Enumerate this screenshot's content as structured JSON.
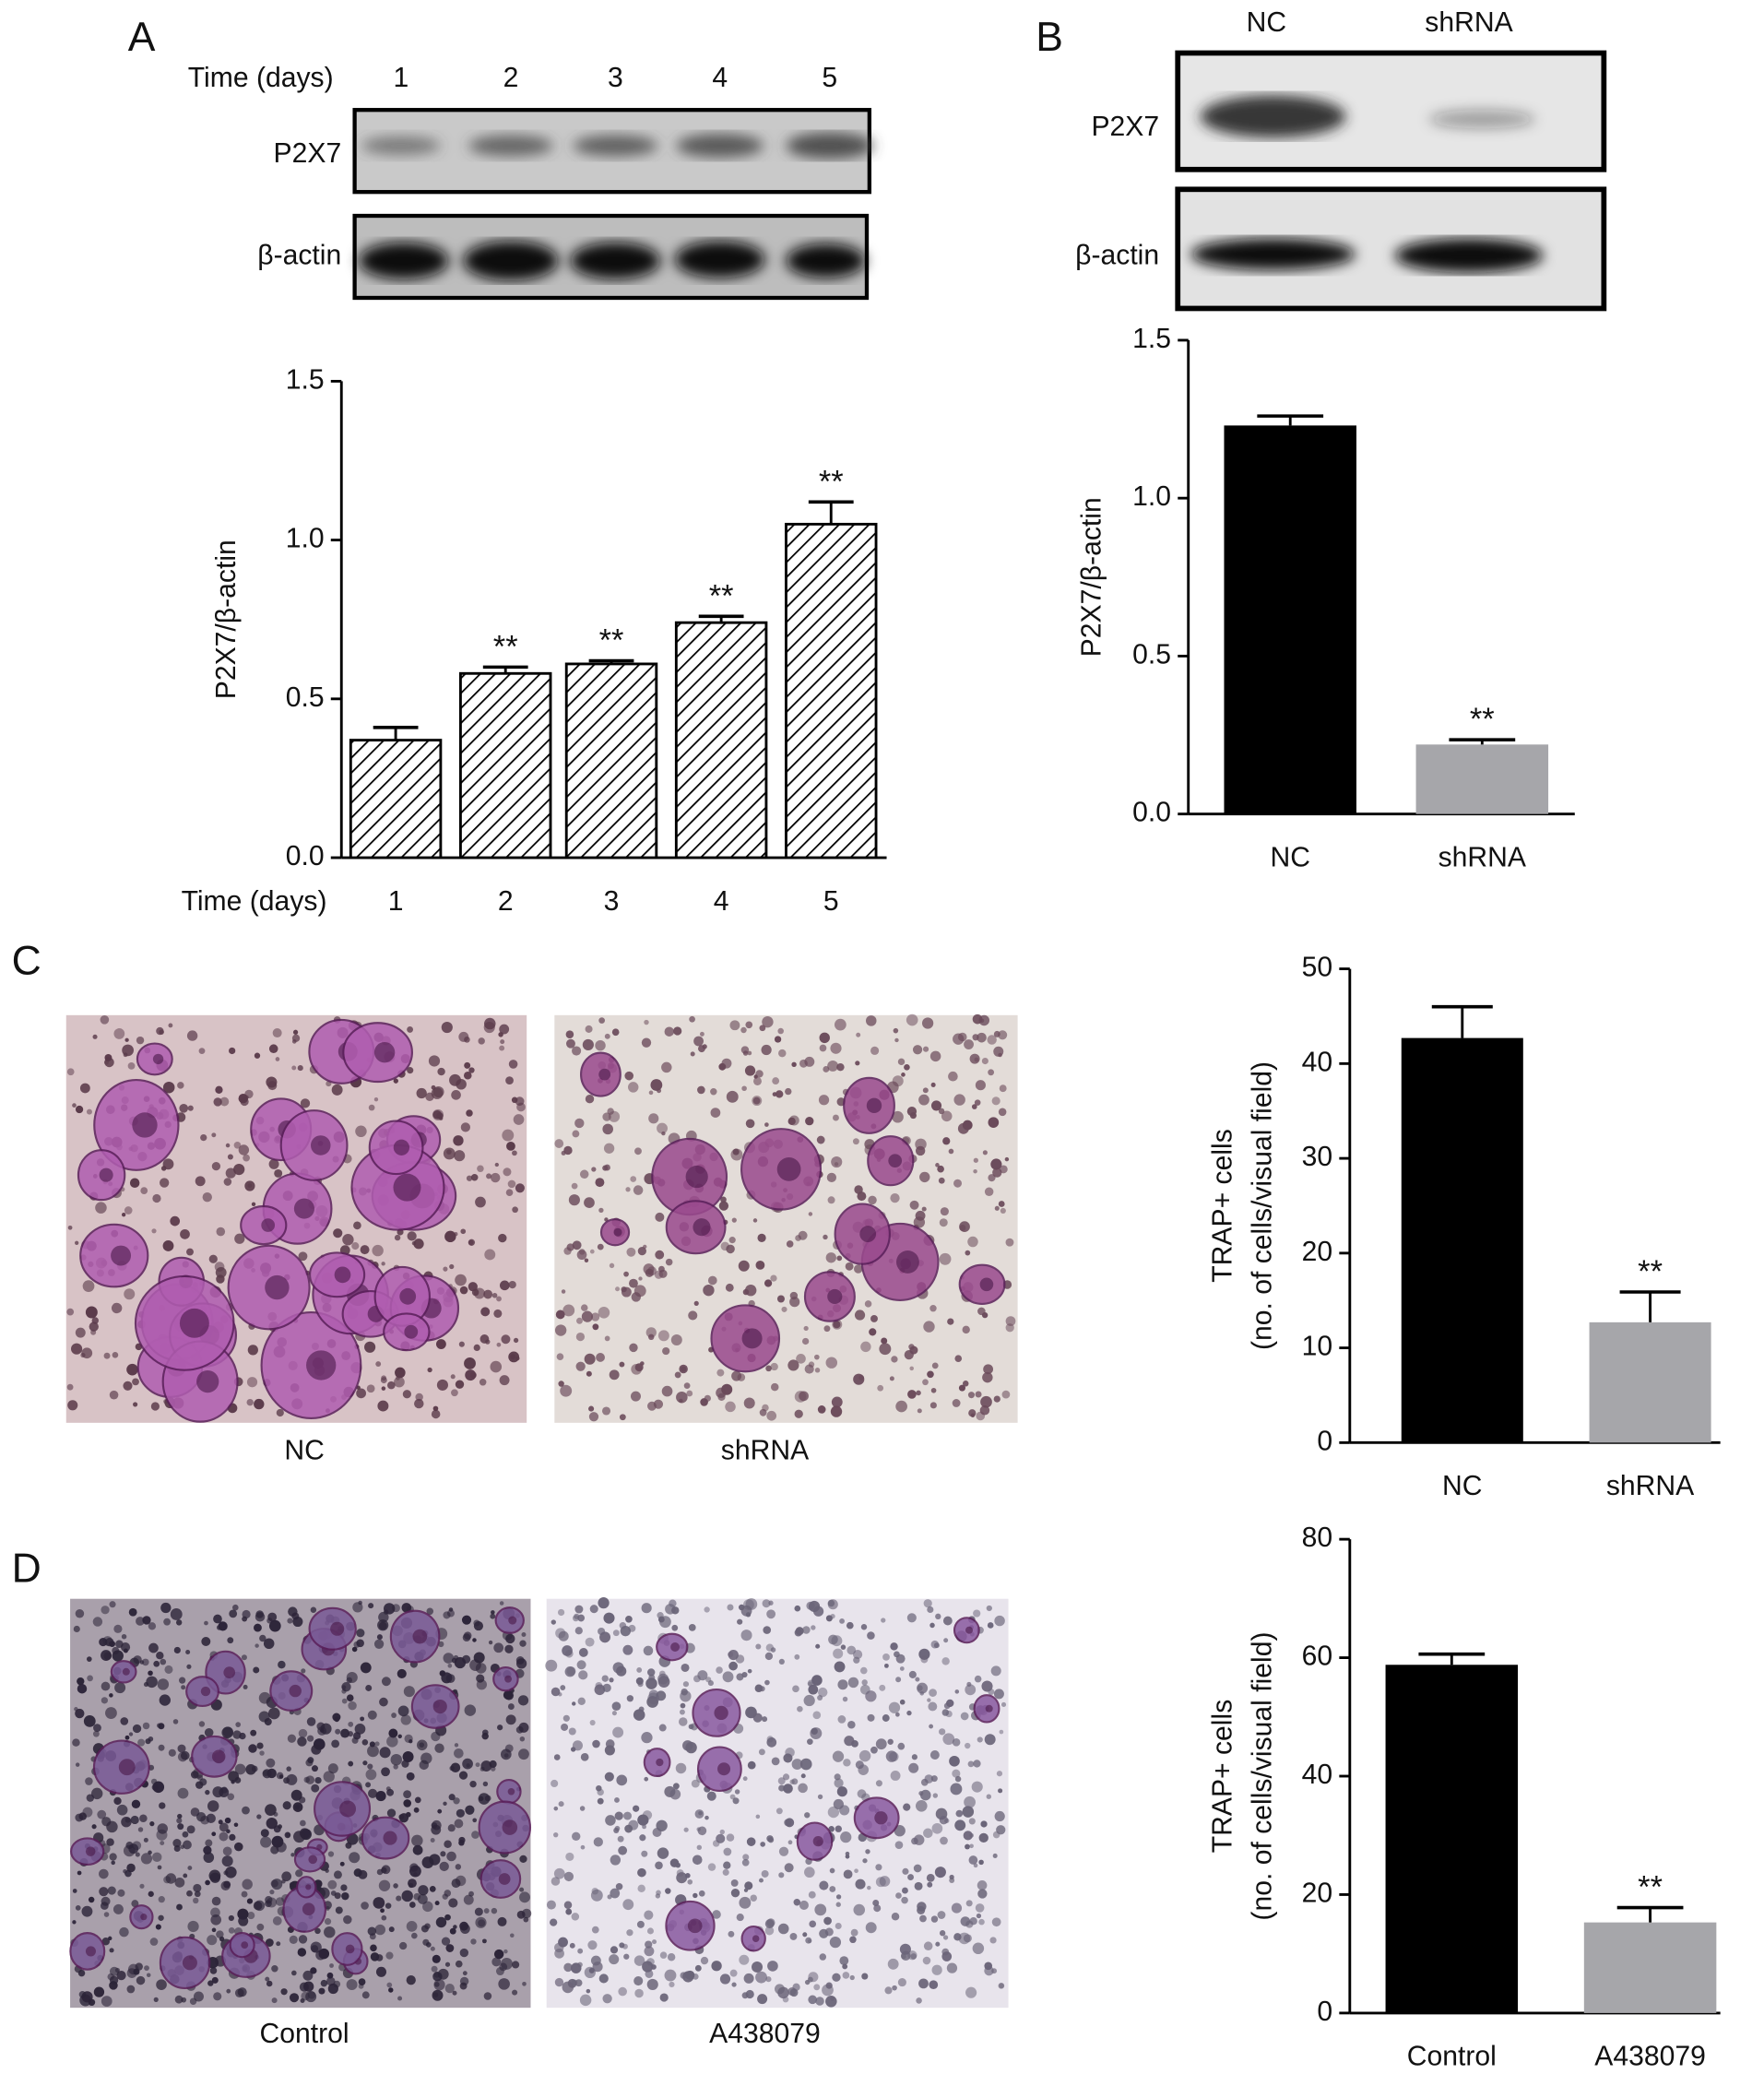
{
  "panels": {
    "a": "A",
    "b": "B",
    "c": "C",
    "d": "D"
  },
  "blot_a": {
    "header_label": "Time (days)",
    "lanes": [
      "1",
      "2",
      "3",
      "4",
      "5"
    ],
    "rows": [
      "P2X7",
      "β-actin"
    ]
  },
  "blot_b": {
    "lanes": [
      "NC",
      "shRNA"
    ],
    "rows": [
      "P2X7",
      "β-actin"
    ]
  },
  "micrographs": {
    "c": [
      "NC",
      "shRNA"
    ],
    "d": [
      "Control",
      "A438079"
    ]
  },
  "chart_data": [
    {
      "type": "bar",
      "xlabel": "Time (days)",
      "ylabel": "P2X7/β-actin",
      "categories": [
        "1",
        "2",
        "3",
        "4",
        "5"
      ],
      "values": [
        0.37,
        0.58,
        0.61,
        0.74,
        1.05
      ],
      "errors": [
        0.04,
        0.02,
        0.01,
        0.02,
        0.07
      ],
      "annotations": [
        null,
        "**",
        "**",
        "**",
        "**"
      ],
      "color": "#ffffff",
      "hatch": true,
      "ylim": [
        0,
        1.5
      ],
      "yticks": [
        {
          "value": 0,
          "label": "0.0"
        },
        0.5,
        {
          "value": 1,
          "label": "1.0"
        },
        1.5
      ]
    },
    {
      "type": "bar",
      "ylabel": "P2X7/β-actin",
      "categories": [
        "NC",
        "shRNA"
      ],
      "values": [
        1.23,
        0.22
      ],
      "errors": [
        0.03,
        0.015
      ],
      "annotations": [
        null,
        "**"
      ],
      "colors": [
        "#000000",
        "#a6a6aa"
      ],
      "hatch": false,
      "ylim": [
        0,
        1.5
      ],
      "yticks": [
        {
          "value": 0,
          "label": "0.0"
        },
        0.5,
        {
          "value": 1,
          "label": "1.0"
        },
        1.5
      ]
    },
    {
      "type": "bar",
      "ylabel": [
        "TRAP+ cells",
        "(no. of cells/visual field)"
      ],
      "categories": [
        "NC",
        "shRNA"
      ],
      "values": [
        42.7,
        12.7
      ],
      "errors": [
        3.3,
        3.2
      ],
      "annotations": [
        null,
        "**"
      ],
      "colors": [
        "#000000",
        "#a6a6aa"
      ],
      "hatch": false,
      "ylim": [
        0,
        50
      ],
      "yticks": [
        0,
        10,
        20,
        30,
        40,
        50
      ]
    },
    {
      "type": "bar",
      "ylabel": [
        "TRAP+ cells",
        "(no. of cells/visual field)"
      ],
      "categories": [
        "Control",
        "A438079"
      ],
      "values": [
        58.8,
        15.3
      ],
      "errors": [
        1.8,
        2.5
      ],
      "annotations": [
        null,
        "**"
      ],
      "colors": [
        "#000000",
        "#a6a6aa"
      ],
      "hatch": false,
      "ylim": [
        0,
        80
      ],
      "yticks": [
        0,
        20,
        40,
        60,
        80
      ]
    }
  ]
}
